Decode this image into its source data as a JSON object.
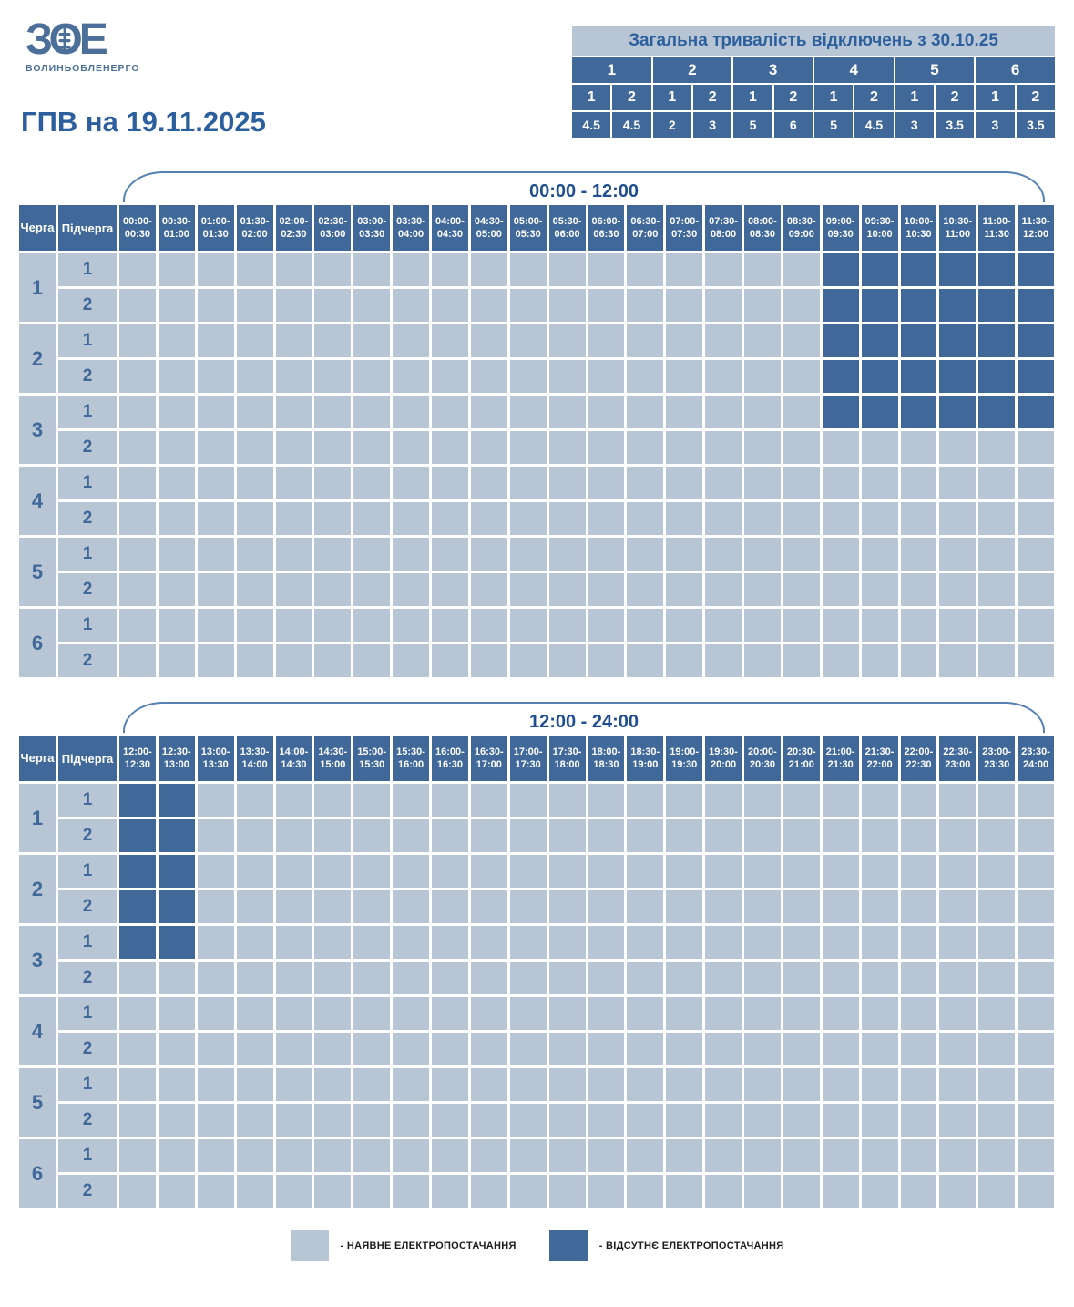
{
  "logo": {
    "mark": "ЗОЕ",
    "company": "ВОЛИНЬОБЛЕНЕРГО"
  },
  "page_title": "ГПВ на 19.11.2025",
  "summary": {
    "title": "Загальна тривалість відключень з 30.10.25",
    "queues": [
      "1",
      "2",
      "3",
      "4",
      "5",
      "6"
    ],
    "subqueues": [
      "1",
      "2",
      "1",
      "2",
      "1",
      "2",
      "1",
      "2",
      "1",
      "2",
      "1",
      "2"
    ],
    "durations": [
      "4.5",
      "4.5",
      "2",
      "3",
      "5",
      "6",
      "5",
      "4.5",
      "3",
      "3.5",
      "3",
      "3.5"
    ]
  },
  "row_header": {
    "queue": "Черга",
    "subqueue": "Підчерга"
  },
  "queues": [
    {
      "queue": "1",
      "subqueues": [
        "1",
        "2"
      ]
    },
    {
      "queue": "2",
      "subqueues": [
        "1",
        "2"
      ]
    },
    {
      "queue": "3",
      "subqueues": [
        "1",
        "2"
      ]
    },
    {
      "queue": "4",
      "subqueues": [
        "1",
        "2"
      ]
    },
    {
      "queue": "5",
      "subqueues": [
        "1",
        "2"
      ]
    },
    {
      "queue": "6",
      "subqueues": [
        "1",
        "2"
      ]
    }
  ],
  "tables": [
    {
      "period": "00:00 - 12:00",
      "slots": [
        "00:00-00:30",
        "00:30-01:00",
        "01:00-01:30",
        "01:30-02:00",
        "02:00-02:30",
        "02:30-03:00",
        "03:00-03:30",
        "03:30-04:00",
        "04:00-04:30",
        "04:30-05:00",
        "05:00-05:30",
        "05:30-06:00",
        "06:00-06:30",
        "06:30-07:00",
        "07:00-07:30",
        "07:30-08:00",
        "08:00-08:30",
        "08:30-09:00",
        "09:00-09:30",
        "09:30-10:00",
        "10:00-10:30",
        "10:30-11:00",
        "11:00-11:30",
        "11:30-12:00"
      ],
      "outage": {
        "row_indices": [
          0,
          1,
          2,
          3,
          4
        ],
        "col_indices": [
          18,
          19,
          20,
          21,
          22,
          23
        ]
      }
    },
    {
      "period": "12:00 - 24:00",
      "slots": [
        "12:00-12:30",
        "12:30-13:00",
        "13:00-13:30",
        "13:30-14:00",
        "14:00-14:30",
        "14:30-15:00",
        "15:00-15:30",
        "15:30-16:00",
        "16:00-16:30",
        "16:30-17:00",
        "17:00-17:30",
        "17:30-18:00",
        "18:00-18:30",
        "18:30-19:00",
        "19:00-19:30",
        "19:30-20:00",
        "20:00-20:30",
        "20:30-21:00",
        "21:00-21:30",
        "21:30-22:00",
        "22:00-22:30",
        "22:30-23:00",
        "23:00-23:30",
        "23:30-24:00"
      ],
      "outage": {
        "row_indices": [
          0,
          1,
          2,
          3,
          4
        ],
        "col_indices": [
          0,
          1
        ]
      }
    }
  ],
  "legend": {
    "available": {
      "label": "- НАЯВНЕ ЕЛЕКТРОПОСТАЧАННЯ"
    },
    "unavailable": {
      "label": "- ВІДСУТНЄ ЕЛЕКТРОПОСТАЧАННЯ"
    }
  },
  "colors": {
    "available": "#B7C5D4",
    "unavailable": "#40699A",
    "accent_text": "#2C5F9E",
    "bracket_border": "#5580B2",
    "logo": "#4C6F99"
  },
  "chart_data": {
    "type": "heatmap",
    "title": "ГПВ на 19.11.2025",
    "subtitle": "Загальна тривалість відключень з 30.10.25",
    "time_range": [
      "00:00",
      "24:00"
    ],
    "slot_minutes": 30,
    "rows": [
      "1.1",
      "1.2",
      "2.1",
      "2.2",
      "3.1",
      "3.2",
      "4.1",
      "4.2",
      "5.1",
      "5.2",
      "6.1",
      "6.2"
    ],
    "outage_intervals": {
      "1.1": [
        "09:00-13:00"
      ],
      "1.2": [
        "09:00-13:00"
      ],
      "2.1": [
        "09:00-13:00"
      ],
      "2.2": [
        "09:00-13:00"
      ],
      "3.1": [
        "09:00-13:00"
      ],
      "3.2": [],
      "4.1": [],
      "4.2": [],
      "5.1": [],
      "5.2": [],
      "6.1": [],
      "6.2": []
    },
    "total_duration_since_30_10_25": {
      "1.1": 4.5,
      "1.2": 4.5,
      "2.1": 2,
      "2.2": 3,
      "3.1": 5,
      "3.2": 6,
      "4.1": 5,
      "4.2": 4.5,
      "5.1": 3,
      "5.2": 3.5,
      "6.1": 3,
      "6.2": 3.5
    },
    "legend": [
      "НАЯВНЕ ЕЛЕКТРОПОСТАЧАННЯ",
      "ВІДСУТНЄ ЕЛЕКТРОПОСТАЧАННЯ"
    ]
  }
}
